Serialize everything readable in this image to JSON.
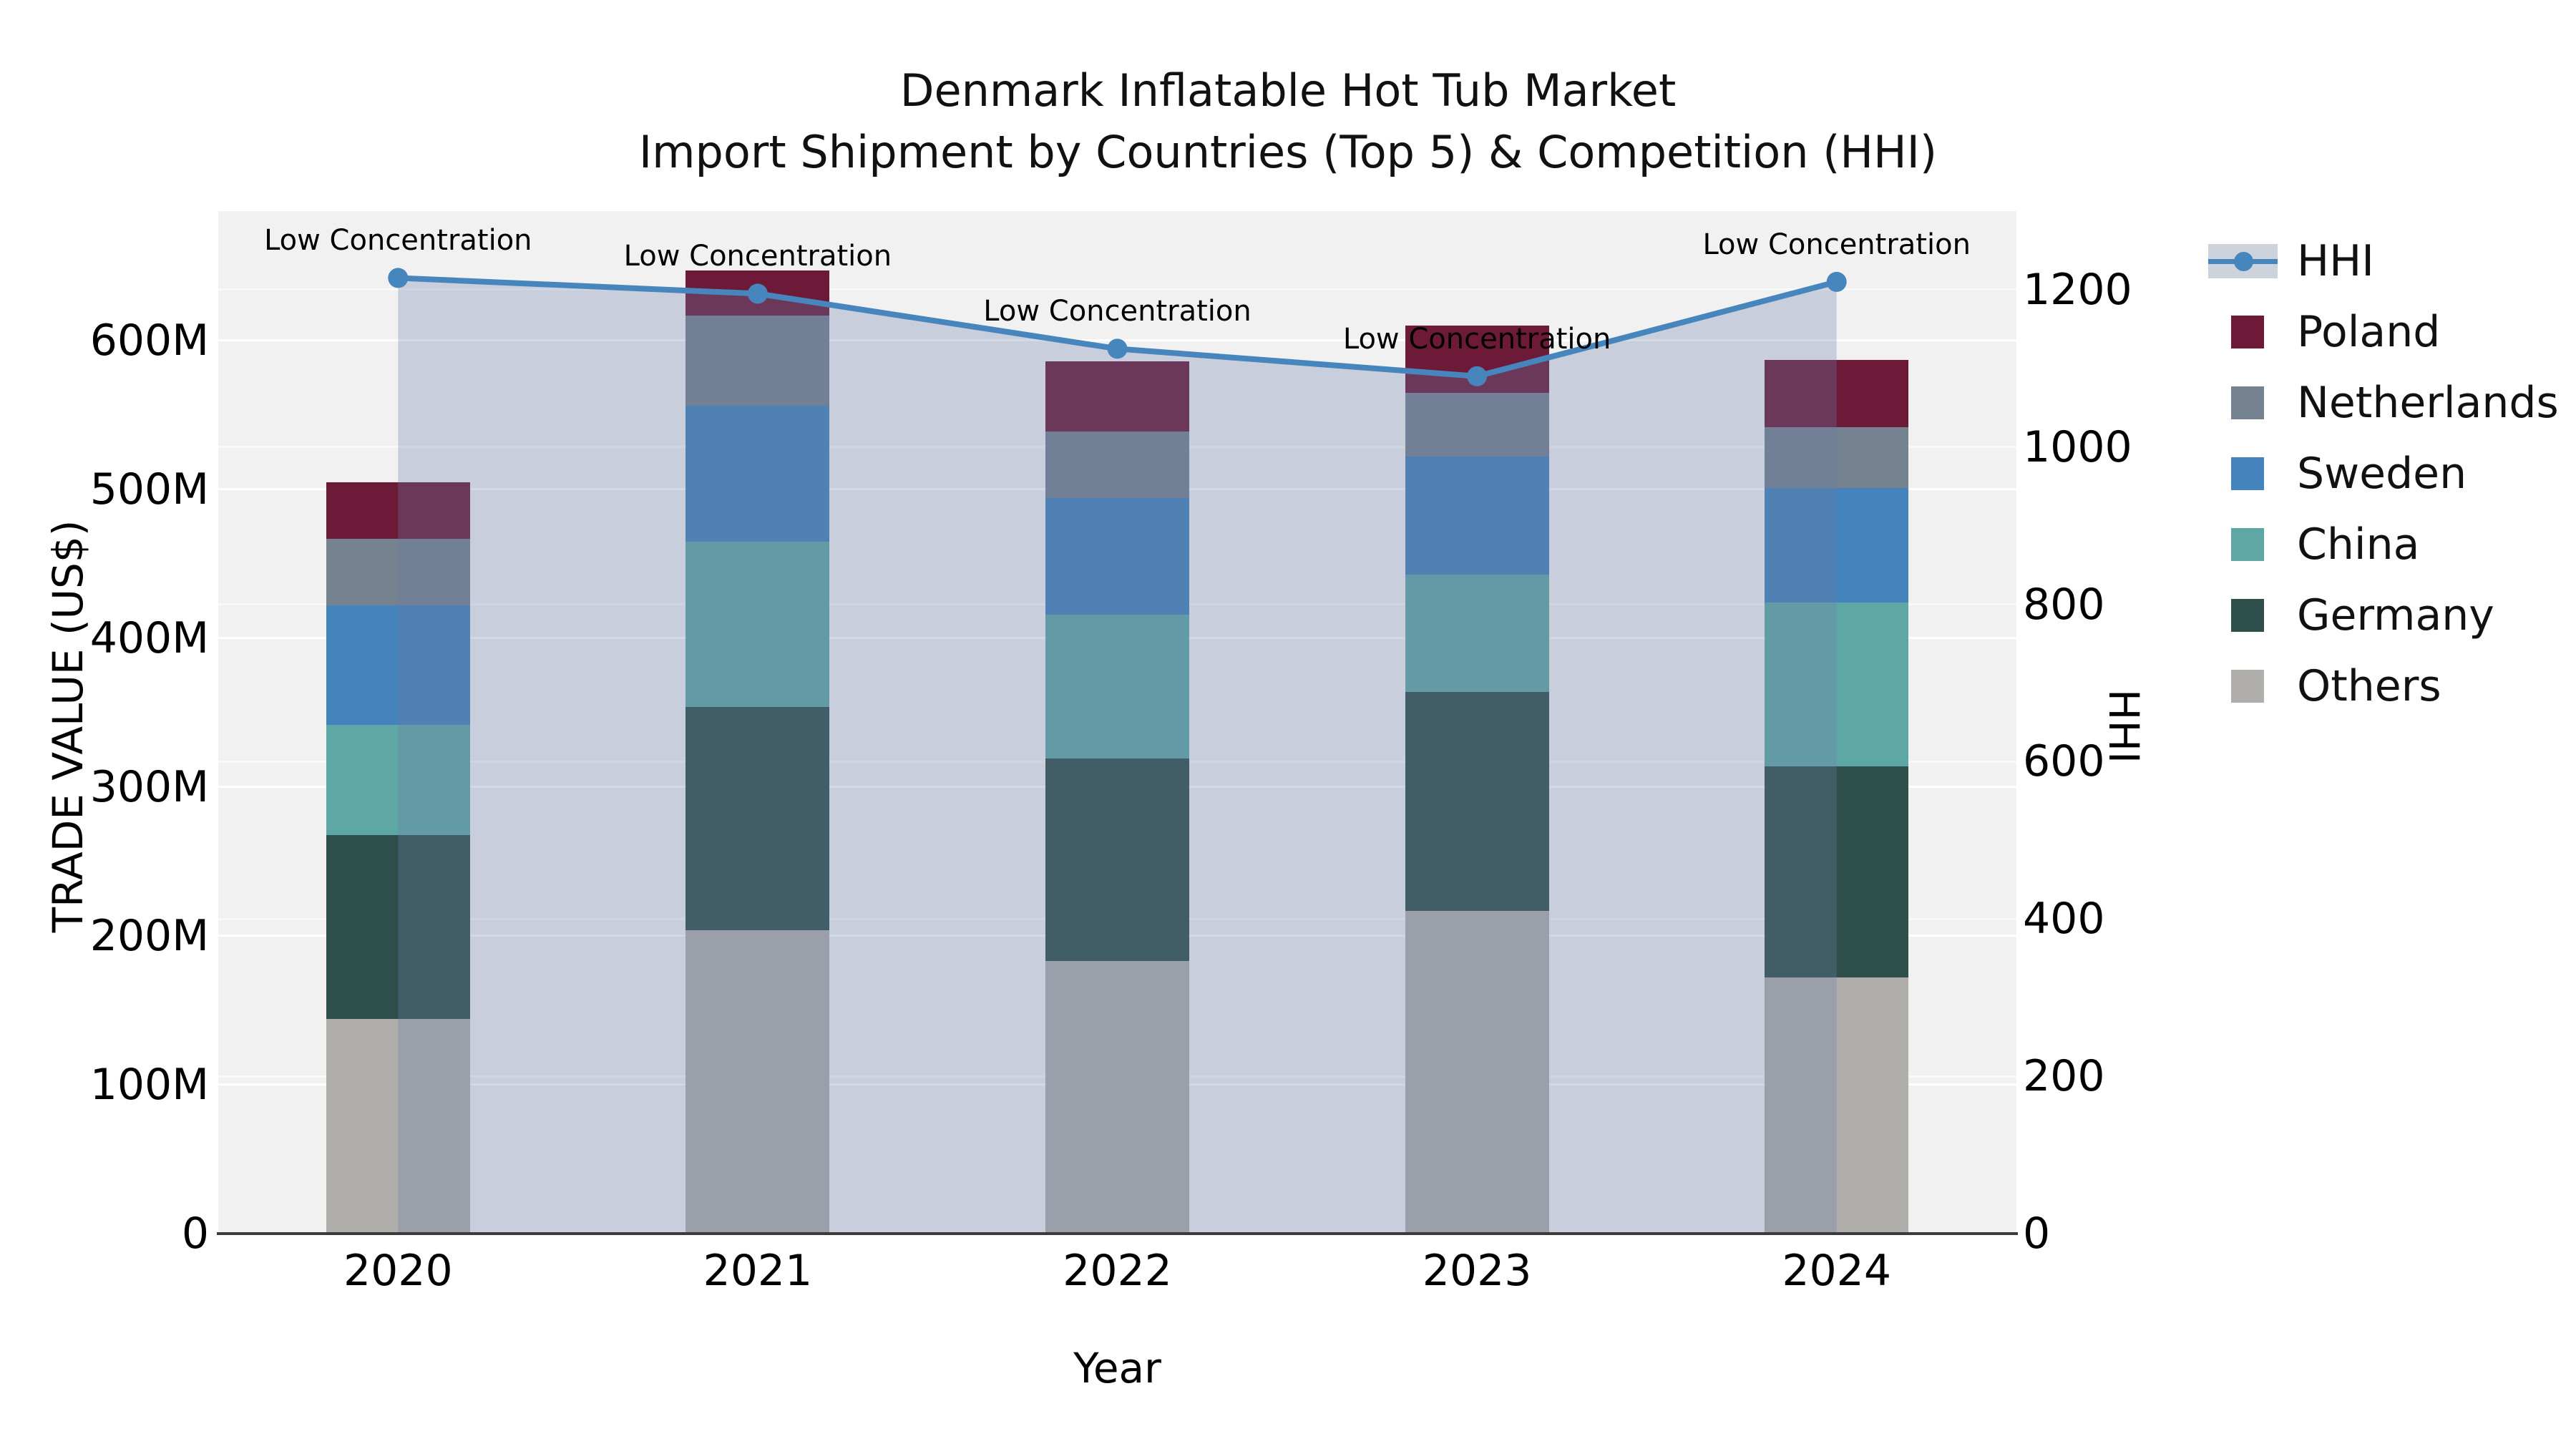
{
  "title": {
    "line1": "Denmark Inflatable Hot Tub Market",
    "line2": "Import Shipment by Countries (Top 5) & Competition (HHI)"
  },
  "axes": {
    "x_title": "Year",
    "y_left_title": "TRADE VALUE (US$)",
    "y_right_title": "HHI",
    "y_left_ticks": [
      "0",
      "100M",
      "200M",
      "300M",
      "400M",
      "500M",
      "600M"
    ],
    "y_left_tick_values": [
      0,
      100,
      200,
      300,
      400,
      500,
      600
    ],
    "y_right_ticks": [
      "0",
      "200",
      "400",
      "600",
      "800",
      "1000",
      "1200"
    ],
    "y_right_tick_values": [
      0,
      200,
      400,
      600,
      800,
      1000,
      1200
    ],
    "x_ticks": [
      "2020",
      "2021",
      "2022",
      "2023",
      "2024"
    ]
  },
  "annotation_text": "Low Concentration",
  "colors": {
    "background": "#f1f1f1",
    "page": "#ffffff",
    "hhi_line": "#4785BD",
    "hhi_fill": "rgba(107,127,170,0.30)",
    "hhi_legend_band": "#ccd3dd",
    "spine": "#3b3b3b",
    "text": "#111111"
  },
  "chart_data": {
    "type": "combo-stacked-bar-line",
    "title": "Denmark Inflatable Hot Tub Market — Import Shipment by Countries (Top 5) & Competition (HHI)",
    "categories": [
      "2020",
      "2021",
      "2022",
      "2023",
      "2024"
    ],
    "unit": "Million US$",
    "xlabel": "Year",
    "ylabel_left": "TRADE VALUE (US$)",
    "ylabel_right": "HHI",
    "ylim_left": [
      0,
      687
    ],
    "ylim_right": [
      0,
      1300
    ],
    "grid": true,
    "legend_position": "right",
    "stack_order_bottom_to_top": [
      "Others",
      "Germany",
      "China",
      "Sweden",
      "Netherlands",
      "Poland"
    ],
    "series": [
      {
        "name": "Poland",
        "type": "bar",
        "color": "#6D1A39",
        "values": [
          38,
          30,
          47,
          45,
          45
        ]
      },
      {
        "name": "Netherlands",
        "type": "bar",
        "color": "#75828F",
        "values": [
          45,
          61,
          45,
          43,
          41
        ]
      },
      {
        "name": "Sweden",
        "type": "bar",
        "color": "#4483BB",
        "values": [
          80,
          91,
          78,
          79,
          77
        ]
      },
      {
        "name": "China",
        "type": "bar",
        "color": "#5FA7A4",
        "values": [
          74,
          111,
          97,
          79,
          110
        ]
      },
      {
        "name": "Germany",
        "type": "bar",
        "color": "#2F4F4D",
        "values": [
          124,
          150,
          136,
          147,
          142
        ]
      },
      {
        "name": "Others",
        "type": "bar",
        "color": "#B0AEAB",
        "values": [
          144,
          204,
          183,
          217,
          172
        ]
      }
    ],
    "bar_totals": [
      505,
      647,
      586,
      610,
      587
    ],
    "line_series": {
      "name": "HHI",
      "type": "line",
      "color": "#4785BD",
      "values": [
        1215,
        1195,
        1125,
        1090,
        1210
      ],
      "area_fill_under_line": true,
      "annotations": [
        "Low Concentration",
        "Low Concentration",
        "Low Concentration",
        "Low Concentration",
        "Low Concentration"
      ]
    }
  },
  "legend": {
    "items": [
      {
        "label": "HHI",
        "marker": "line-dot-band"
      },
      {
        "label": "Poland",
        "marker": "square",
        "color": "#6D1A39"
      },
      {
        "label": "Netherlands",
        "marker": "square",
        "color": "#75828F"
      },
      {
        "label": "Sweden",
        "marker": "square",
        "color": "#4483BB"
      },
      {
        "label": "China",
        "marker": "square",
        "color": "#5FA7A4"
      },
      {
        "label": "Germany",
        "marker": "square",
        "color": "#2F4F4D"
      },
      {
        "label": "Others",
        "marker": "square",
        "color": "#B0AEAB"
      }
    ]
  }
}
